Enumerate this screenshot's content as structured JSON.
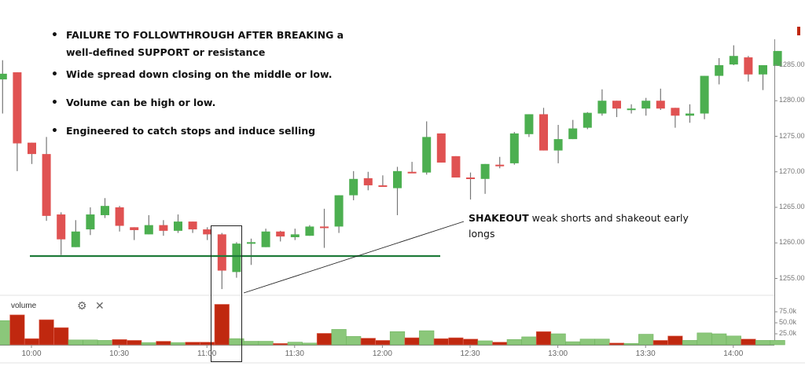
{
  "annotations": {
    "bullets": [
      "FAILURE TO FOLLOWTHROUGH AFTER BREAKING a well-defined SUPPORT or resistance",
      "Wide spread down closing on the middle or  low.",
      "Volume can be high or low.",
      "Engineered to catch stops and induce selling"
    ],
    "bullet_line1": "FAILURE TO FOLLOWTHROUGH AFTER BREAKING a",
    "bullet_line2": "well-defined SUPPORT or resistance",
    "shakeout_bold": "SHAKEOUT",
    "shakeout_text": " weak shorts and shakeout early longs"
  },
  "volume_panel": {
    "label": "volume",
    "settings_icon": "gear-icon",
    "close_icon": "close-icon"
  },
  "colors": {
    "up": "#4caf50",
    "down": "#e05252",
    "vol_up": "#8bc77a",
    "vol_down": "#c0280f",
    "support_line": "#1e7b3a",
    "wick": "#777777",
    "axis": "#888888"
  },
  "chart_data": {
    "type": "candlestick",
    "title": "",
    "xlabel": "",
    "ylabel": "",
    "ylim": [
      1251,
      1288.5
    ],
    "price_ticks": [
      1255,
      1260,
      1265,
      1270,
      1275,
      1280,
      1285
    ],
    "price_tick_labels": [
      "1255.00",
      "1260.00",
      "1265.00",
      "1270.00",
      "1275.00",
      "1280.00",
      "1285.00"
    ],
    "volume_ticks": [
      25000,
      50000,
      75000
    ],
    "volume_tick_labels": [
      "25.0k",
      "50.0k",
      "75.0k"
    ],
    "time_ticks": [
      "10:00",
      "10:30",
      "11:00",
      "11:30",
      "12:00",
      "12:30",
      "13:00",
      "13:30",
      "14:00"
    ],
    "interval_minutes": 5,
    "first_candle_time": "9:50",
    "support_level": 1258.3,
    "highlight_box": {
      "from_candle": 15,
      "to_candle": 16,
      "label": "SHAKEOUT"
    },
    "candles": [
      {
        "o": 1283.0,
        "h": 1285.7,
        "l": 1278.2,
        "c": 1283.8
      },
      {
        "o": 1284.0,
        "h": 1284.0,
        "l": 1270.1,
        "c": 1274.0
      },
      {
        "o": 1274.1,
        "h": 1274.1,
        "l": 1271.1,
        "c": 1272.5
      },
      {
        "o": 1272.5,
        "h": 1274.9,
        "l": 1263.1,
        "c": 1263.8
      },
      {
        "o": 1264.0,
        "h": 1264.3,
        "l": 1258.3,
        "c": 1260.5
      },
      {
        "o": 1259.4,
        "h": 1263.2,
        "l": 1259.4,
        "c": 1261.6
      },
      {
        "o": 1261.9,
        "h": 1265.0,
        "l": 1261.1,
        "c": 1264.0
      },
      {
        "o": 1263.9,
        "h": 1266.3,
        "l": 1263.5,
        "c": 1265.2
      },
      {
        "o": 1265.0,
        "h": 1265.2,
        "l": 1261.6,
        "c": 1262.4
      },
      {
        "o": 1262.2,
        "h": 1262.2,
        "l": 1260.4,
        "c": 1261.8
      },
      {
        "o": 1261.2,
        "h": 1263.9,
        "l": 1261.2,
        "c": 1262.5
      },
      {
        "o": 1262.5,
        "h": 1263.2,
        "l": 1261.0,
        "c": 1261.7
      },
      {
        "o": 1261.7,
        "h": 1264.0,
        "l": 1261.4,
        "c": 1263.0
      },
      {
        "o": 1263.0,
        "h": 1263.0,
        "l": 1261.4,
        "c": 1261.9
      },
      {
        "o": 1261.9,
        "h": 1262.2,
        "l": 1260.4,
        "c": 1261.2
      },
      {
        "o": 1261.2,
        "h": 1261.4,
        "l": 1253.5,
        "c": 1256.1
      },
      {
        "o": 1255.9,
        "h": 1260.1,
        "l": 1255.1,
        "c": 1259.9
      },
      {
        "o": 1259.9,
        "h": 1260.6,
        "l": 1256.9,
        "c": 1260.1
      },
      {
        "o": 1259.4,
        "h": 1262.0,
        "l": 1259.4,
        "c": 1261.6
      },
      {
        "o": 1261.6,
        "h": 1261.7,
        "l": 1260.2,
        "c": 1260.9
      },
      {
        "o": 1260.8,
        "h": 1262.0,
        "l": 1260.4,
        "c": 1261.2
      },
      {
        "o": 1261.0,
        "h": 1262.5,
        "l": 1261.0,
        "c": 1262.3
      },
      {
        "o": 1262.3,
        "h": 1264.8,
        "l": 1259.3,
        "c": 1262.1
      },
      {
        "o": 1262.3,
        "h": 1266.7,
        "l": 1261.4,
        "c": 1266.7
      },
      {
        "o": 1266.7,
        "h": 1270.1,
        "l": 1266.0,
        "c": 1269.0
      },
      {
        "o": 1269.1,
        "h": 1270.0,
        "l": 1267.4,
        "c": 1268.1
      },
      {
        "o": 1268.1,
        "h": 1269.5,
        "l": 1267.9,
        "c": 1267.9
      },
      {
        "o": 1267.7,
        "h": 1270.7,
        "l": 1263.9,
        "c": 1270.1
      },
      {
        "o": 1270.0,
        "h": 1271.4,
        "l": 1269.9,
        "c": 1269.8
      },
      {
        "o": 1269.9,
        "h": 1277.1,
        "l": 1269.6,
        "c": 1274.9
      },
      {
        "o": 1275.4,
        "h": 1275.4,
        "l": 1271.3,
        "c": 1271.3
      },
      {
        "o": 1272.2,
        "h": 1272.2,
        "l": 1269.2,
        "c": 1269.2
      },
      {
        "o": 1269.2,
        "h": 1269.9,
        "l": 1266.1,
        "c": 1269.0
      },
      {
        "o": 1269.0,
        "h": 1271.1,
        "l": 1266.9,
        "c": 1271.1
      },
      {
        "o": 1271.0,
        "h": 1272.1,
        "l": 1270.5,
        "c": 1270.8
      },
      {
        "o": 1271.2,
        "h": 1275.6,
        "l": 1271.0,
        "c": 1275.4
      },
      {
        "o": 1275.3,
        "h": 1278.1,
        "l": 1274.9,
        "c": 1278.1
      },
      {
        "o": 1278.1,
        "h": 1279.0,
        "l": 1273.0,
        "c": 1273.0
      },
      {
        "o": 1273.0,
        "h": 1276.6,
        "l": 1271.2,
        "c": 1274.6
      },
      {
        "o": 1274.6,
        "h": 1277.3,
        "l": 1274.6,
        "c": 1276.1
      },
      {
        "o": 1276.2,
        "h": 1278.4,
        "l": 1276.0,
        "c": 1278.3
      },
      {
        "o": 1278.2,
        "h": 1281.6,
        "l": 1277.9,
        "c": 1280.0
      },
      {
        "o": 1280.0,
        "h": 1280.0,
        "l": 1277.7,
        "c": 1278.9
      },
      {
        "o": 1278.9,
        "h": 1279.5,
        "l": 1278.2,
        "c": 1278.9
      },
      {
        "o": 1278.9,
        "h": 1280.4,
        "l": 1277.9,
        "c": 1280.0
      },
      {
        "o": 1280.0,
        "h": 1281.7,
        "l": 1278.7,
        "c": 1278.9
      },
      {
        "o": 1279.0,
        "h": 1279.0,
        "l": 1276.2,
        "c": 1277.9
      },
      {
        "o": 1277.9,
        "h": 1279.5,
        "l": 1276.9,
        "c": 1278.2
      },
      {
        "o": 1278.2,
        "h": 1283.5,
        "l": 1277.4,
        "c": 1283.5
      },
      {
        "o": 1283.5,
        "h": 1286.0,
        "l": 1282.3,
        "c": 1285.0
      },
      {
        "o": 1285.1,
        "h": 1287.8,
        "l": 1285.0,
        "c": 1286.3
      },
      {
        "o": 1286.1,
        "h": 1286.3,
        "l": 1282.7,
        "c": 1283.7
      },
      {
        "o": 1283.7,
        "h": 1285.0,
        "l": 1281.5,
        "c": 1285.0
      },
      {
        "o": 1284.9,
        "h": 1287.0,
        "l": 1284.9,
        "c": 1287.0
      }
    ],
    "volume": [
      55000,
      68000,
      14000,
      57000,
      39000,
      11000,
      11000,
      10000,
      12000,
      10000,
      5000,
      8000,
      5000,
      6000,
      6000,
      92000,
      14000,
      8000,
      8000,
      3000,
      6000,
      4000,
      26000,
      35000,
      19000,
      15000,
      10000,
      30000,
      16000,
      32000,
      14000,
      16000,
      13000,
      9000,
      6000,
      12000,
      18000,
      30000,
      25000,
      7000,
      13000,
      13000,
      4000,
      3000,
      24000,
      10000,
      20000,
      10000,
      27000,
      25000,
      20000,
      13000,
      10000,
      10000
    ]
  }
}
